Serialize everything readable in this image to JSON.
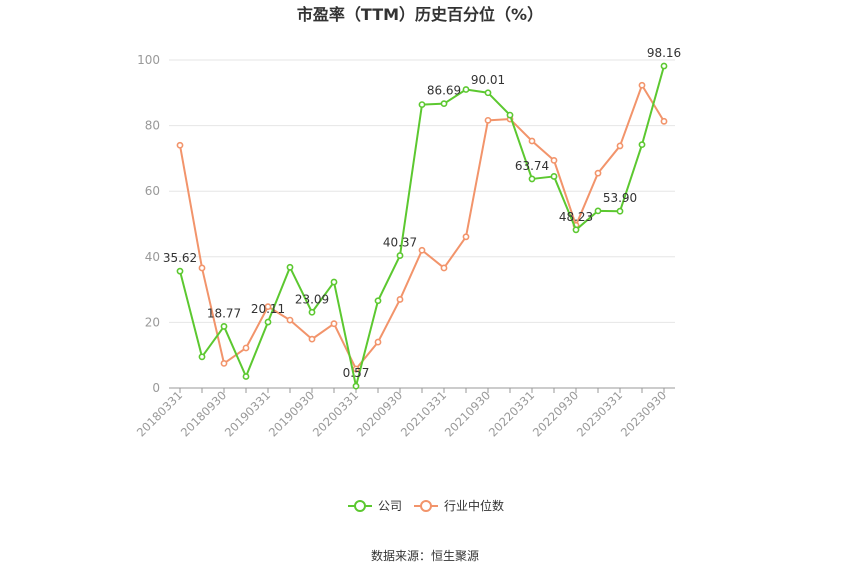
{
  "chart_data": {
    "type": "line",
    "title": "市盈率（TTM）历史百分位（%）",
    "x": [
      "20180331",
      "20180630",
      "20180930",
      "20181231",
      "20190331",
      "20190630",
      "20190930",
      "20191231",
      "20200331",
      "20200630",
      "20200930",
      "20201231",
      "20210331",
      "20210630",
      "20210930",
      "20211231",
      "20220331",
      "20220630",
      "20220930",
      "20221231",
      "20230331",
      "20230630",
      "20230930"
    ],
    "x_tick_labels": [
      "20180331",
      "20180930",
      "20190331",
      "20190930",
      "20200331",
      "20200930",
      "20210331",
      "20210930",
      "20220331",
      "20220930",
      "20230331",
      "20230930"
    ],
    "ylim": [
      0,
      100
    ],
    "yticks": [
      0,
      20,
      40,
      60,
      80,
      100
    ],
    "grid": true,
    "legend_position": "bottom",
    "series": [
      {
        "name": "公司",
        "color": "#5cc830",
        "values": [
          35.62,
          9.5,
          18.77,
          3.5,
          20.11,
          36.8,
          23.09,
          32.3,
          0.57,
          26.6,
          40.37,
          86.4,
          86.69,
          91.0,
          90.01,
          83.2,
          63.74,
          64.5,
          48.23,
          54.0,
          53.9,
          74.2,
          98.16
        ],
        "labels": {
          "0": "35.62",
          "2": "18.77",
          "4": "20.11",
          "6": "23.09",
          "8": "0.57",
          "10": "40.37",
          "12": "86.69",
          "14": "90.01",
          "16": "63.74",
          "18": "48.23",
          "20": "53.90",
          "22": "98.16"
        }
      },
      {
        "name": "行业中位数",
        "color": "#f2946b",
        "values": [
          74.0,
          36.6,
          7.5,
          12.2,
          24.8,
          20.7,
          14.9,
          19.6,
          5.8,
          14.0,
          27.0,
          42.0,
          36.6,
          46.1,
          81.6,
          82.0,
          75.3,
          69.4,
          49.6,
          65.5,
          73.8,
          92.3,
          81.3
        ]
      }
    ]
  },
  "source_text": "数据来源：恒生聚源"
}
